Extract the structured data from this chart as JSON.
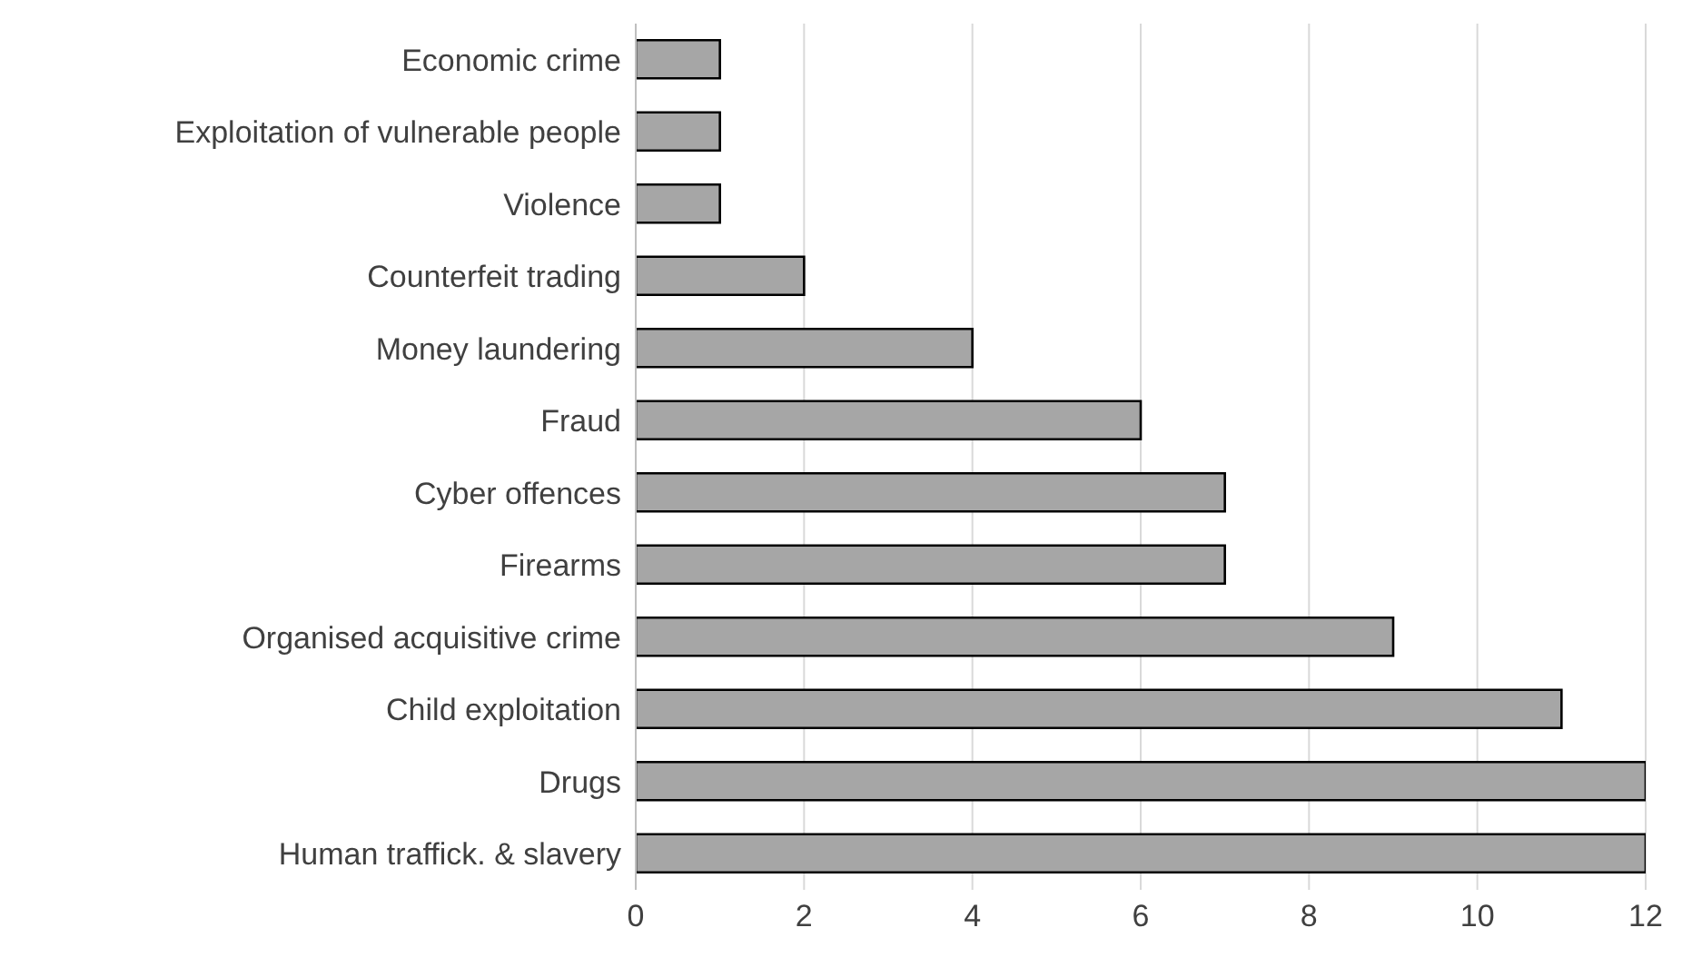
{
  "chart_data": {
    "type": "bar",
    "orientation": "horizontal",
    "categories": [
      "Economic crime",
      "Exploitation of vulnerable people",
      "Violence",
      "Counterfeit trading",
      "Money laundering",
      "Fraud",
      "Cyber offences",
      "Firearms",
      "Organised acquisitive crime",
      "Child exploitation",
      "Drugs",
      "Human traffick. &  slavery"
    ],
    "values": [
      1,
      1,
      1,
      2,
      4,
      6,
      7,
      7,
      9,
      11,
      12,
      12
    ],
    "color": "#a6a6a6",
    "xlim": [
      0,
      12
    ],
    "xticks": [
      0,
      2,
      4,
      6,
      8,
      10,
      12
    ],
    "grid": "x"
  }
}
